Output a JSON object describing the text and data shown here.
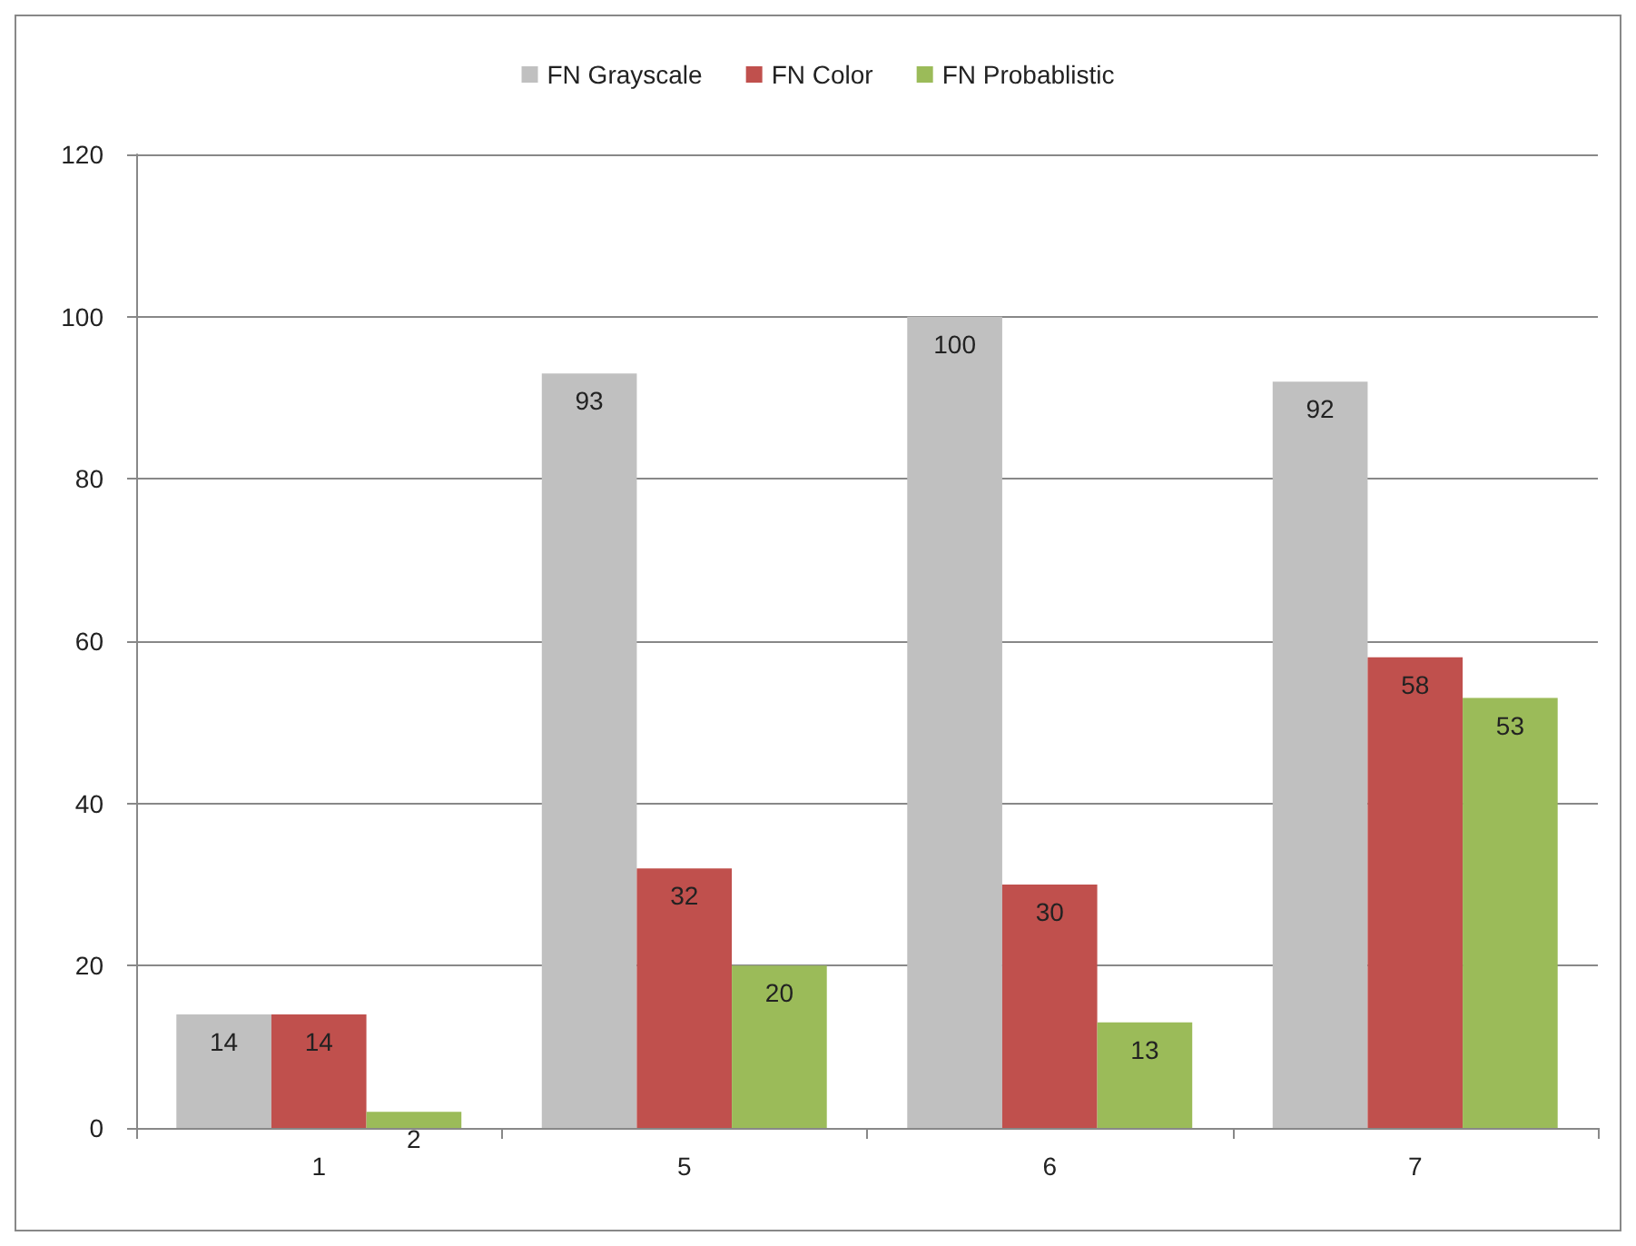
{
  "chart_data": {
    "type": "bar",
    "categories": [
      "1",
      "5",
      "6",
      "7"
    ],
    "series": [
      {
        "name": "FN Grayscale",
        "color": "#c0c0c0",
        "values": [
          14,
          93,
          100,
          92
        ]
      },
      {
        "name": "FN Color",
        "color": "#c0504d",
        "values": [
          14,
          32,
          30,
          58
        ]
      },
      {
        "name": "FN Probablistic",
        "color": "#9bbb59",
        "values": [
          2,
          20,
          13,
          53
        ]
      }
    ],
    "ylim": [
      0,
      120
    ],
    "yticks": [
      0,
      20,
      40,
      60,
      80,
      100,
      120
    ],
    "grid": "y",
    "legend": "top",
    "data_labels": true
  }
}
